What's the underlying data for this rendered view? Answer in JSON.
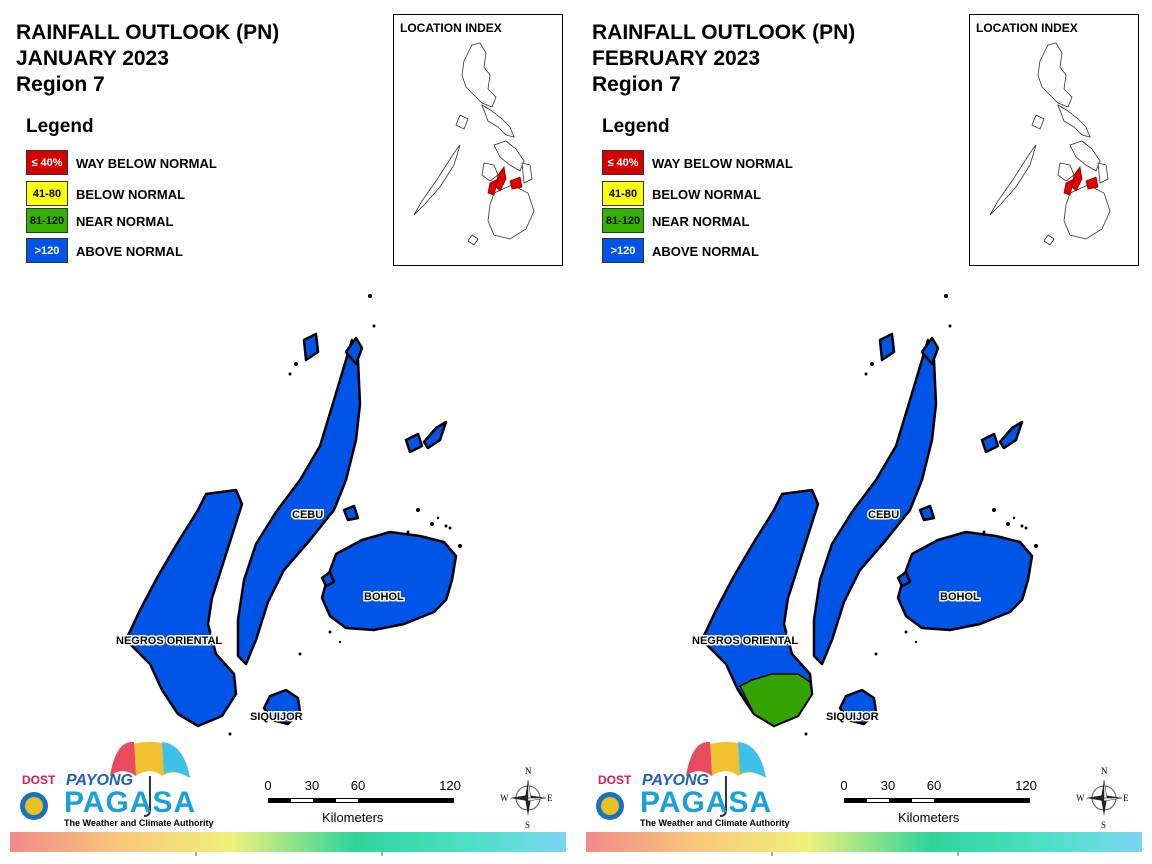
{
  "panels": [
    {
      "title_line1": "RAINFALL OUTLOOK (PN)",
      "title_line2": "JANUARY 2023",
      "title_line3": "Region 7",
      "legend_title": "Legend",
      "legend": [
        {
          "swatch": "≤ 40%",
          "label": "WAY BELOW NORMAL",
          "color": "#d40000",
          "text_color": "#ffffff"
        },
        {
          "swatch": "41-80",
          "label": "BELOW NORMAL",
          "color": "#ffff00",
          "text_color": "#000000"
        },
        {
          "swatch": "81-120",
          "label": "NEAR NORMAL",
          "color": "#33b300",
          "text_color": "#000000"
        },
        {
          "swatch": ">120",
          "label": "ABOVE NORMAL",
          "color": "#0055e6",
          "text_color": "#ffffff"
        }
      ],
      "index_title": "LOCATION INDEX",
      "places": {
        "cebu": "CEBU",
        "bohol": "BOHOL",
        "negros": "NEGROS ORIENTAL",
        "siquijor": "SIQUIJOR"
      },
      "negros_south_category": "ABOVE NORMAL",
      "logo": {
        "dost": "DOST",
        "payong": "PAYONG",
        "pagasa": "PAGASA",
        "tagline": "The Weather and Climate Authority"
      },
      "scale": {
        "ticks": [
          "0",
          "30",
          "60",
          "120"
        ],
        "unit": "Kilometers"
      },
      "compass": {
        "n": "N",
        "s": "S",
        "e": "E",
        "w": "W"
      }
    },
    {
      "title_line1": "RAINFALL OUTLOOK (PN)",
      "title_line2": "FEBRUARY 2023",
      "title_line3": "Region 7",
      "legend_title": "Legend",
      "legend": [
        {
          "swatch": "≤ 40%",
          "label": "WAY BELOW NORMAL",
          "color": "#d40000",
          "text_color": "#ffffff"
        },
        {
          "swatch": "41-80",
          "label": "BELOW NORMAL",
          "color": "#ffff00",
          "text_color": "#000000"
        },
        {
          "swatch": "81-120",
          "label": "NEAR NORMAL",
          "color": "#33b300",
          "text_color": "#000000"
        },
        {
          "swatch": ">120",
          "label": "ABOVE NORMAL",
          "color": "#0055e6",
          "text_color": "#ffffff"
        }
      ],
      "index_title": "LOCATION INDEX",
      "places": {
        "cebu": "CEBU",
        "bohol": "BOHOL",
        "negros": "NEGROS ORIENTAL",
        "siquijor": "SIQUIJOR"
      },
      "negros_south_category": "NEAR NORMAL",
      "logo": {
        "dost": "DOST",
        "payong": "PAYONG",
        "pagasa": "PAGASA",
        "tagline": "The Weather and Climate Authority"
      },
      "scale": {
        "ticks": [
          "0",
          "30",
          "60",
          "120"
        ],
        "unit": "Kilometers"
      },
      "compass": {
        "n": "N",
        "s": "S",
        "e": "E",
        "w": "W"
      }
    }
  ],
  "colors": {
    "above_normal": "#0055e6",
    "near_normal": "#33a300",
    "highlight": "#e00000"
  }
}
